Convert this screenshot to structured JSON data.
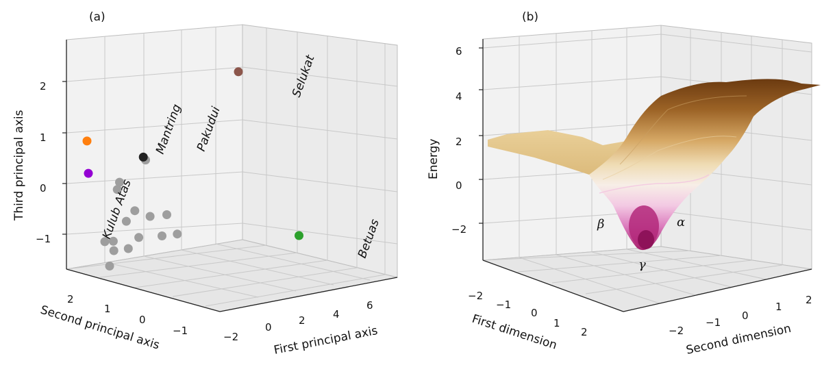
{
  "chart_data": [
    {
      "type": "scatter3d",
      "panel_label": "(a)",
      "xlabel": "First principal axis",
      "ylabel": "Second principal axis",
      "zlabel": "Third principal axis",
      "x_ticks": [
        "−2",
        "0",
        "2",
        "4",
        "6"
      ],
      "y_ticks": [
        "2",
        "1",
        "0",
        "−1"
      ],
      "z_ticks": [
        "2",
        "1",
        "0",
        "−1"
      ],
      "xlim": [
        -2.5,
        7.5
      ],
      "ylim": [
        -1.6,
        2.7
      ],
      "zlim": [
        -1.6,
        2.7
      ],
      "grid": true,
      "colors": {
        "selukat": "#8c564b",
        "mantring": "#ff7f0e",
        "pakudui": "#222222",
        "kulub_atas": "#9400d3",
        "betuas": "#2ca02c",
        "others": "#9e9e9e"
      },
      "labeled_points": [
        {
          "name": "Selukat",
          "x": 3.0,
          "y": -1.0,
          "z": 2.3,
          "color": "#8c564b"
        },
        {
          "name": "Mantring",
          "x": -1.5,
          "y": 1.5,
          "z": 0.9,
          "color": "#ff7f0e"
        },
        {
          "name": "Pakudui",
          "x": 0.2,
          "y": 0.6,
          "z": 0.6,
          "color": "#222222"
        },
        {
          "name": "Kulub Atas",
          "x": -1.0,
          "y": 2.0,
          "z": 0.35,
          "color": "#9400d3"
        },
        {
          "name": "Betuas",
          "x": 7.0,
          "y": 0.5,
          "z": -0.5,
          "color": "#2ca02c"
        }
      ],
      "other_points": [
        {
          "x": 0.3,
          "y": 0.6,
          "z": 0.55
        },
        {
          "x": -0.5,
          "y": 1.0,
          "z": 0.1
        },
        {
          "x": -0.6,
          "y": 1.0,
          "z": -0.05
        },
        {
          "x": 0.5,
          "y": 0.6,
          "z": -0.55
        },
        {
          "x": 0.0,
          "y": 0.8,
          "z": -0.45
        },
        {
          "x": 0.8,
          "y": 0.1,
          "z": -0.55
        },
        {
          "x": -0.2,
          "y": 1.0,
          "z": -0.65
        },
        {
          "x": 0.5,
          "y": 0.0,
          "z": -1.0
        },
        {
          "x": 0.0,
          "y": 0.6,
          "z": -1.0
        },
        {
          "x": -0.6,
          "y": 1.2,
          "z": -1.05
        },
        {
          "x": -0.8,
          "y": 1.4,
          "z": -1.05
        },
        {
          "x": 1.0,
          "y": -0.2,
          "z": -0.95
        },
        {
          "x": -0.2,
          "y": 0.9,
          "z": -1.2
        },
        {
          "x": -0.5,
          "y": 1.5,
          "z": -1.5
        },
        {
          "x": -0.4,
          "y": 1.4,
          "z": -1.2
        }
      ]
    },
    {
      "type": "surface3d",
      "panel_label": "(b)",
      "xlabel": "First dimension",
      "ylabel": "Second dimension",
      "zlabel": "Energy",
      "x_ticks": [
        "−2",
        "−1",
        "0",
        "1",
        "2"
      ],
      "y_ticks": [
        "−2",
        "−1",
        "0",
        "1",
        "2"
      ],
      "z_ticks": [
        "6",
        "4",
        "2",
        "0",
        "−2"
      ],
      "xlim": [
        -2.5,
        2.5
      ],
      "ylim": [
        -2.5,
        2.5
      ],
      "zlim": [
        -3.5,
        6.2
      ],
      "grid": true,
      "colormap": "PuOr (magenta at low energy, brown at high energy)",
      "minima_annotations": [
        {
          "label": "β"
        },
        {
          "label": "α"
        },
        {
          "label": "γ"
        }
      ]
    }
  ]
}
